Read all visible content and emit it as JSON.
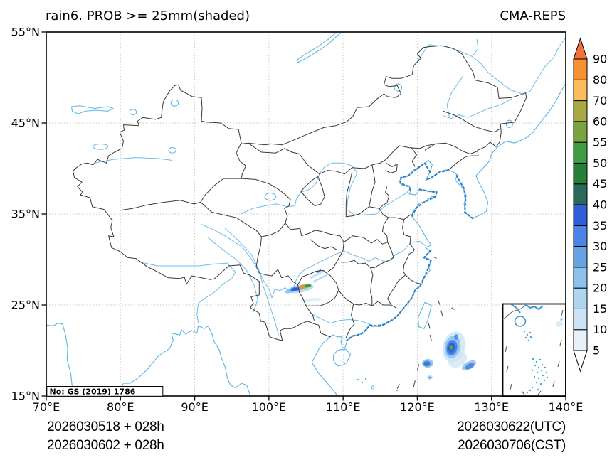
{
  "title": "rain6. PROB >= 25mm(shaded)",
  "model": "CMA-REPS",
  "watermark": "No: GS (2019) 1786",
  "footer": {
    "init_utc": "2026030518 + 028h",
    "init_cst": "2026030602 + 028h",
    "valid_utc": "2026030622(UTC)",
    "valid_cst": "2026030706(CST)"
  },
  "axes": {
    "x_tick_values": [
      70,
      80,
      90,
      100,
      110,
      120,
      130,
      140
    ],
    "x_tick_labels": [
      "70°E",
      "80°E",
      "90°E",
      "100°E",
      "110°E",
      "120°E",
      "130°E",
      "140°E"
    ],
    "y_tick_values": [
      55,
      45,
      35,
      25,
      15
    ],
    "y_tick_labels": [
      "55°N",
      "45°N",
      "35°N",
      "25°N",
      "15°N"
    ],
    "lon_range": [
      70,
      140
    ],
    "lat_range": [
      15,
      55
    ]
  },
  "colorbar": {
    "levels": [
      5,
      10,
      15,
      20,
      25,
      30,
      35,
      40,
      45,
      50,
      55,
      60,
      70,
      80,
      90
    ],
    "segment_colors": [
      "#e6f1f9",
      "#cce4f5",
      "#aed6f1",
      "#8cc3ec",
      "#66a4e4",
      "#4b84e6",
      "#2f5ed9",
      "#2a6a5a",
      "#26803a",
      "#3f9e44",
      "#7aa440",
      "#a8a942",
      "#fdbd5c",
      "#fa9131"
    ],
    "over_color": "#f2703a",
    "under_color": "#ffffff"
  },
  "precipitation": {
    "unit": "probability % of 6h rain >= 25mm",
    "areas": [
      {
        "name": "southwest-china-guizhou",
        "approx_lon": 104.5,
        "approx_lat": 27.0,
        "peak_band": "80-90"
      },
      {
        "name": "philippine-sea",
        "approx_lon": 124.7,
        "approx_lat": 20.6,
        "peak_band": "50-55"
      },
      {
        "name": "northwest-of-luzon",
        "approx_lon": 121.4,
        "approx_lat": 18.8,
        "peak_band": "50-55"
      }
    ]
  }
}
